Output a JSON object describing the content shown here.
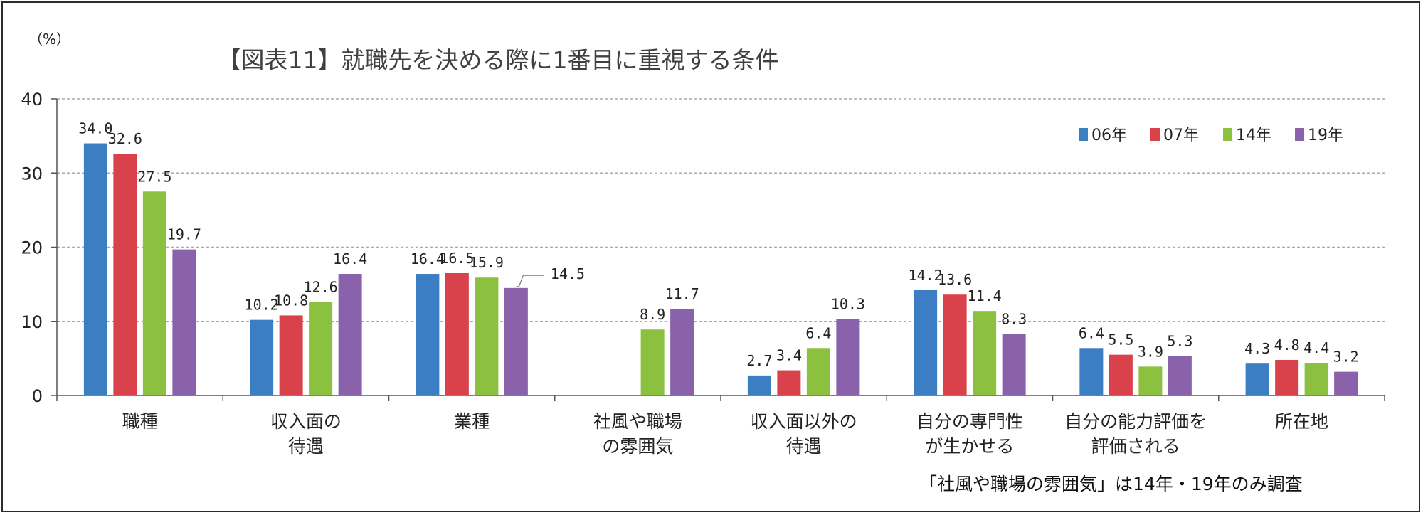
{
  "chart_data": {
    "type": "bar",
    "title": "【図表11】就職先を決める際に1番目に重視する条件",
    "unit_label": "（%）",
    "ylim": [
      0,
      40
    ],
    "yticks": [
      "0",
      "10",
      "20",
      "30",
      "40"
    ],
    "grid": true,
    "legend_position": "top-right",
    "categories": [
      [
        "職種"
      ],
      [
        "収入面の",
        "待遇"
      ],
      [
        "業種"
      ],
      [
        "社風や職場",
        "の雰囲気"
      ],
      [
        "収入面以外の",
        "待遇"
      ],
      [
        "自分の専門性",
        "が生かせる"
      ],
      [
        "自分の能力評価を",
        "評価される"
      ],
      [
        "所在地"
      ]
    ],
    "series": [
      {
        "name": "06年",
        "color": "#3b7ec4",
        "values": [
          34.0,
          10.2,
          16.4,
          null,
          2.7,
          14.2,
          6.4,
          4.3
        ],
        "labels": [
          "34.0",
          "10.2",
          "16.4",
          "",
          "2.7",
          "14.2",
          "6.4",
          "4.3"
        ]
      },
      {
        "name": "07年",
        "color": "#d9424a",
        "values": [
          32.6,
          10.8,
          16.5,
          null,
          3.4,
          13.6,
          5.5,
          4.8
        ],
        "labels": [
          "32.6",
          "10.8",
          "16.5",
          "",
          "3.4",
          "13.6",
          "5.5",
          "4.8"
        ]
      },
      {
        "name": "14年",
        "color": "#8cc03f",
        "values": [
          27.5,
          12.6,
          15.9,
          8.9,
          6.4,
          11.4,
          3.9,
          4.4
        ],
        "labels": [
          "27.5",
          "12.6",
          "15.9",
          "8.9",
          "6.4",
          "11.4",
          "3.9",
          "4.4"
        ]
      },
      {
        "name": "19年",
        "color": "#8a62ab",
        "values": [
          19.7,
          16.4,
          14.5,
          11.7,
          10.3,
          8.3,
          5.3,
          3.2
        ],
        "labels": [
          "19.7",
          "16.4",
          "14.5",
          "11.7",
          "10.3",
          "8.3",
          "5.3",
          "3.2"
        ]
      }
    ],
    "footnote": "「社風や職場の雰囲気」は14年・19年のみ調査"
  }
}
